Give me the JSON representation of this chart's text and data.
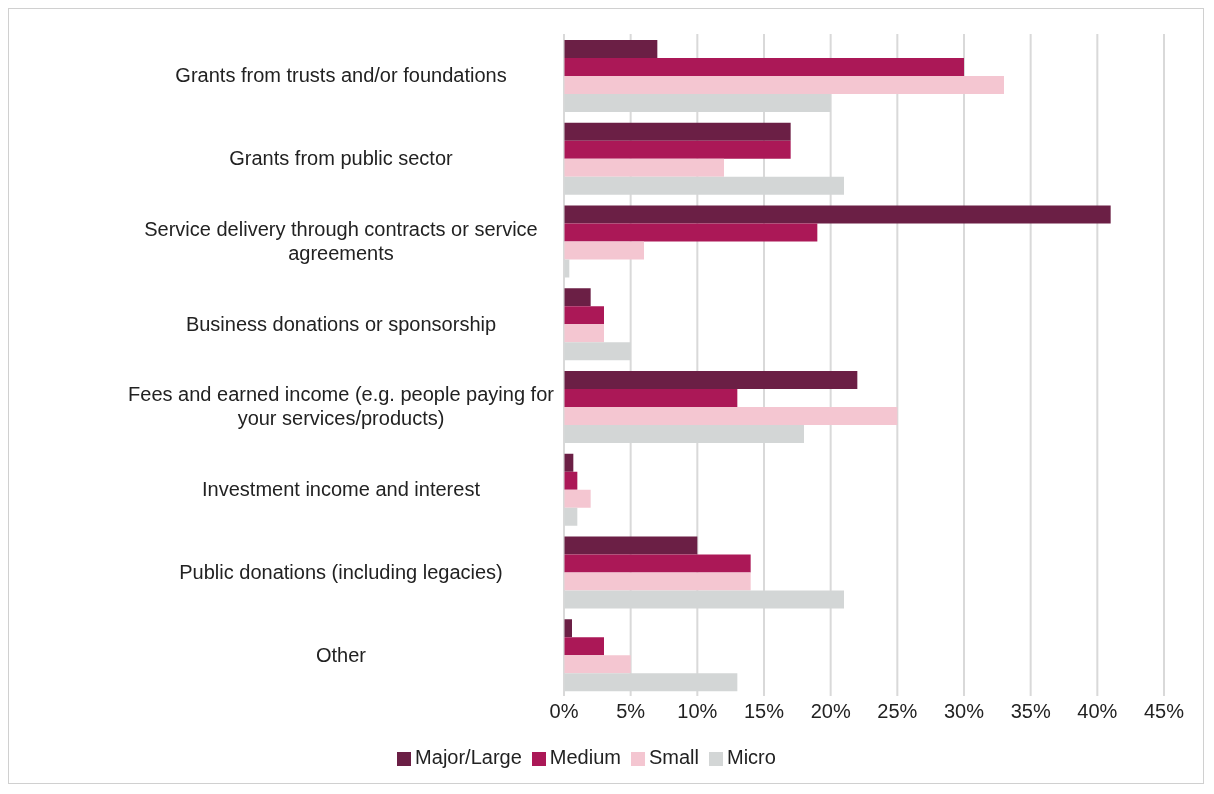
{
  "chart_data": {
    "type": "bar",
    "orientation": "horizontal",
    "categories": [
      "Grants from trusts and/or foundations",
      "Grants from public sector",
      "Service delivery through contracts or service agreements",
      "Business donations or sponsorship",
      "Fees and earned income (e.g. people paying for your services/products)",
      "Investment income and interest",
      "Public donations (including legacies)",
      "Other"
    ],
    "series": [
      {
        "name": "Major/Large",
        "color": "#6b1f45",
        "values": [
          7,
          17,
          41,
          2,
          22,
          0.7,
          10,
          0.6
        ]
      },
      {
        "name": "Medium",
        "color": "#ab1857",
        "values": [
          30,
          17,
          19,
          3,
          13,
          1,
          14,
          3
        ]
      },
      {
        "name": "Small",
        "color": "#f4c6d1",
        "values": [
          33,
          12,
          6,
          3,
          25,
          2,
          14,
          5
        ]
      },
      {
        "name": "Micro",
        "color": "#d3d6d6",
        "values": [
          20,
          21,
          0.4,
          5,
          18,
          1,
          21,
          13
        ]
      }
    ],
    "xlim": [
      0,
      45
    ],
    "xticks": [
      {
        "value": 0,
        "label": "0%"
      },
      {
        "value": 5,
        "label": "5%"
      },
      {
        "value": 10,
        "label": "10%"
      },
      {
        "value": 15,
        "label": "15%"
      },
      {
        "value": 20,
        "label": "20%"
      },
      {
        "value": 25,
        "label": "25%"
      },
      {
        "value": 30,
        "label": "30%"
      },
      {
        "value": 35,
        "label": "35%"
      },
      {
        "value": 40,
        "label": "40%"
      },
      {
        "value": 45,
        "label": "45%"
      }
    ],
    "grid": "x",
    "legend": "bottom"
  }
}
